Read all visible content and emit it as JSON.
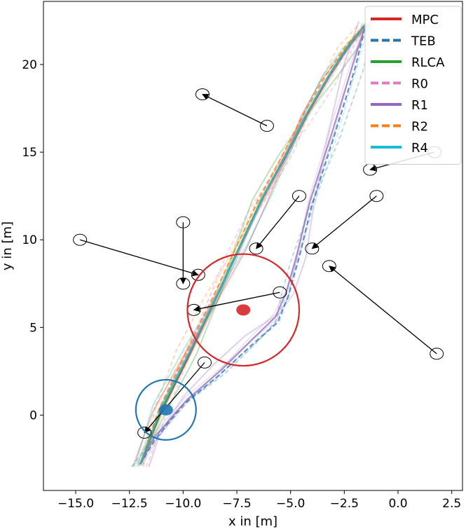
{
  "chart_data": {
    "type": "line",
    "title": "",
    "xlabel": "x in [m]",
    "ylabel": "y in [m]",
    "xlim": [
      -16.5,
      3.0
    ],
    "ylim": [
      -4.3,
      23.6
    ],
    "xticks": [
      -15.0,
      -12.5,
      -10.0,
      -7.5,
      -5.0,
      -2.5,
      0.0,
      2.5
    ],
    "xtick_labels": [
      "−15.0",
      "−12.5",
      "−10.0",
      "−7.5",
      "−5.0",
      "−2.5",
      "0.0",
      "2.5"
    ],
    "yticks": [
      0,
      5,
      10,
      15,
      20
    ],
    "ytick_labels": [
      "0",
      "5",
      "10",
      "15",
      "20"
    ],
    "grid": false,
    "legend_position": "top-right",
    "series": [
      {
        "name": "MPC",
        "color": "#d62728",
        "dash": "solid",
        "x": [
          -12.0,
          -11.0,
          -9.8,
          -8.6,
          -7.5,
          -6.4,
          -5.2,
          -4.2,
          -3.2,
          -2.3,
          -1.5
        ],
        "y": [
          -2.8,
          0.2,
          3.2,
          6.3,
          9.2,
          12.1,
          14.8,
          17.2,
          19.3,
          21.0,
          22.3
        ]
      },
      {
        "name": "TEB",
        "color": "#1f77b4",
        "dash": "dashed",
        "x": [
          -12.0,
          -11.3,
          -10.0,
          -8.4,
          -6.8,
          -5.6,
          -5.1,
          -4.6,
          -4.0,
          -3.0,
          -2.0,
          -1.5
        ],
        "y": [
          -2.8,
          -1.4,
          0.6,
          2.2,
          4.0,
          5.3,
          6.8,
          9.0,
          12.0,
          15.8,
          19.8,
          22.3
        ]
      },
      {
        "name": "RLCA",
        "color": "#2ca02c",
        "dash": "solid",
        "x": [
          -12.0,
          -11.0,
          -9.8,
          -8.6,
          -7.5,
          -6.4,
          -5.2,
          -4.2,
          -3.2,
          -2.3,
          -1.5
        ],
        "y": [
          -2.8,
          0.3,
          3.3,
          6.4,
          9.3,
          12.2,
          14.9,
          17.3,
          19.4,
          21.1,
          22.3
        ]
      },
      {
        "name": "R0",
        "color": "#e377c2",
        "dash": "dashed",
        "x": [
          -12.0,
          -11.2,
          -10.0,
          -8.8,
          -7.6,
          -6.5,
          -5.4,
          -4.4,
          -3.4,
          -2.4,
          -1.5
        ],
        "y": [
          -2.8,
          0.0,
          3.0,
          6.0,
          8.9,
          11.8,
          14.5,
          16.9,
          19.0,
          20.8,
          22.3
        ]
      },
      {
        "name": "R1",
        "color": "#9467bd",
        "dash": "solid",
        "x": [
          -12.0,
          -11.3,
          -9.8,
          -8.2,
          -6.8,
          -5.7,
          -5.2,
          -4.7,
          -4.1,
          -3.1,
          -2.1,
          -1.5
        ],
        "y": [
          -2.8,
          -1.2,
          0.9,
          2.6,
          4.3,
          5.6,
          7.0,
          9.2,
          12.2,
          16.0,
          20.0,
          22.3
        ]
      },
      {
        "name": "R2",
        "color": "#ff7f0e",
        "dash": "dashed",
        "x": [
          -12.0,
          -11.1,
          -9.9,
          -8.7,
          -7.6,
          -6.5,
          -5.3,
          -4.3,
          -3.3,
          -2.4,
          -1.5
        ],
        "y": [
          -2.8,
          0.4,
          3.5,
          6.5,
          9.4,
          12.3,
          15.0,
          17.4,
          19.5,
          21.1,
          22.3
        ]
      },
      {
        "name": "R4",
        "color": "#17becf",
        "dash": "solid",
        "x": [
          -12.0,
          -11.0,
          -9.7,
          -8.5,
          -7.4,
          -6.3,
          -5.1,
          -4.1,
          -3.1,
          -2.2,
          -1.5
        ],
        "y": [
          -2.8,
          0.5,
          3.6,
          6.6,
          9.5,
          12.4,
          15.1,
          17.5,
          19.6,
          21.2,
          22.3
        ]
      }
    ],
    "obstacles": [
      {
        "x": -9.1,
        "y": 18.3,
        "dx": 3.0,
        "dy": -1.8,
        "direction": "backward"
      },
      {
        "x": 1.7,
        "y": 15.0,
        "dx": -3.0,
        "dy": -1.0,
        "direction": "forward"
      },
      {
        "x": -4.6,
        "y": 12.5,
        "dx": -2.0,
        "dy": -3.0,
        "direction": "forward"
      },
      {
        "x": -1.0,
        "y": 12.5,
        "dx": -3.0,
        "dy": -3.0,
        "direction": "forward"
      },
      {
        "x": -10.0,
        "y": 11.0,
        "dx": 0.0,
        "dy": -3.5,
        "direction": "forward"
      },
      {
        "x": -14.8,
        "y": 10.0,
        "dx": 5.5,
        "dy": -2.0,
        "direction": "forward"
      },
      {
        "x": -3.2,
        "y": 8.5,
        "dx": 5.0,
        "dy": -5.0,
        "direction": "backward"
      },
      {
        "x": -5.5,
        "y": 7.0,
        "dx": -4.0,
        "dy": -1.0,
        "direction": "forward"
      },
      {
        "x": -9.0,
        "y": 3.0,
        "dx": -2.8,
        "dy": -4.0,
        "direction": "forward"
      }
    ],
    "robots": [
      {
        "name": "MPC",
        "x": -7.2,
        "y": 6.0,
        "radius": 2.6,
        "color": "#d62728"
      },
      {
        "name": "TEB",
        "x": -10.8,
        "y": 0.3,
        "radius": 1.4,
        "color": "#1f77b4"
      }
    ]
  }
}
